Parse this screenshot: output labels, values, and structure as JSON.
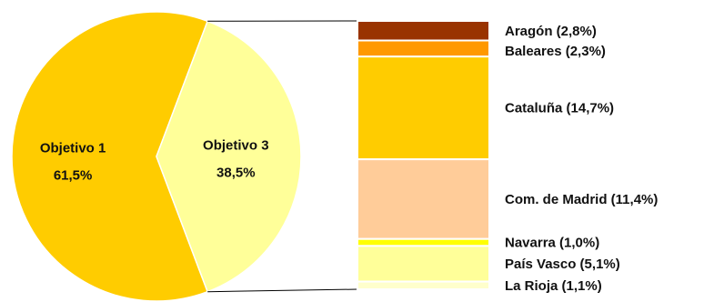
{
  "chart_data": {
    "type": "bar-of-pie",
    "pie": {
      "slices": [
        {
          "label": "Objetivo 1",
          "value": 61.5,
          "value_label": "61,5%",
          "color": "#FFCC00"
        },
        {
          "label": "Objetivo 3",
          "value": 38.5,
          "value_label": "38,5%",
          "color": "#FFFF99"
        }
      ]
    },
    "bar": {
      "parent_slice": "Objetivo 3",
      "segments": [
        {
          "label": "Aragón (2,8%)",
          "value": 2.8,
          "color": "#993300"
        },
        {
          "label": "Baleares (2,3%)",
          "value": 2.3,
          "color": "#FF9900"
        },
        {
          "label": "Cataluña (14,7%)",
          "value": 14.7,
          "color": "#FFCC00"
        },
        {
          "label": "Com. de Madrid (11,4%)",
          "value": 11.4,
          "color": "#FFCC99"
        },
        {
          "label": "Navarra (1,0%)",
          "value": 1.0,
          "color": "#FFFF00"
        },
        {
          "label": "País Vasco (5,1%)",
          "value": 5.1,
          "color": "#FFFF99"
        },
        {
          "label": "La Rioja (1,1%)",
          "value": 1.1,
          "color": "#FFFFCC"
        }
      ]
    },
    "legend": "none",
    "grid": false
  }
}
